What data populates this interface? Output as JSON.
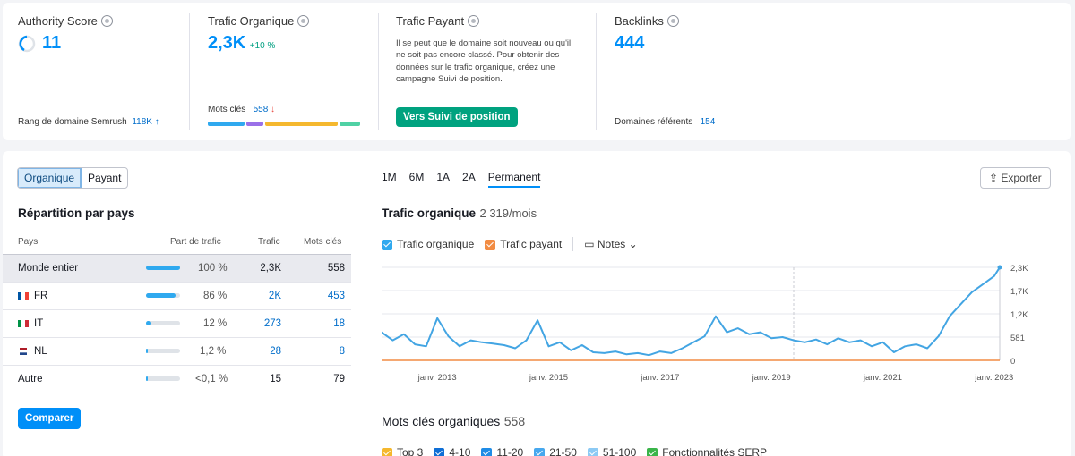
{
  "authority": {
    "title": "Authority Score",
    "value": "11",
    "footer_label": "Rang de domaine Semrush",
    "footer_value": "118K",
    "footer_arrow": "↑"
  },
  "organic": {
    "title": "Trafic Organique",
    "value": "2,3K",
    "delta": "+10 %",
    "kw_label": "Mots clés",
    "kw_value": "558",
    "kw_arrow": "↓"
  },
  "paid": {
    "title": "Trafic Payant",
    "message": "Il se peut que le domaine soit nouveau ou qu'il ne soit pas encore classé. Pour obtenir des données sur le trafic organique, créez une campagne Suivi de position.",
    "button": "Vers Suivi de position"
  },
  "backlinks": {
    "title": "Backlinks",
    "value": "444",
    "footer_label": "Domaines référents",
    "footer_value": "154"
  },
  "tabs": {
    "organic": "Organique",
    "paid": "Payant"
  },
  "country": {
    "title": "Répartition par pays",
    "headers": {
      "country": "Pays",
      "share": "Part de trafic",
      "traffic": "Trafic",
      "keywords": "Mots clés"
    },
    "rows": [
      {
        "name": "Monde entier",
        "share": "100 %",
        "share_frac": 1.0,
        "traffic": "2,3K",
        "keywords": "558"
      },
      {
        "name": "FR",
        "share": "86 %",
        "share_frac": 0.86,
        "traffic": "2K",
        "keywords": "453"
      },
      {
        "name": "IT",
        "share": "12 %",
        "share_frac": 0.12,
        "traffic": "273",
        "keywords": "18"
      },
      {
        "name": "NL",
        "share": "1,2 %",
        "share_frac": 0.012,
        "traffic": "28",
        "keywords": "8"
      },
      {
        "name": "Autre",
        "share": "<0,1 %",
        "share_frac": 0.001,
        "traffic": "15",
        "keywords": "79"
      }
    ],
    "compare_button": "Comparer"
  },
  "periods": [
    "1M",
    "6M",
    "1A",
    "2A",
    "Permanent"
  ],
  "export_label": "Exporter",
  "traffic_chart": {
    "title": "Trafic organique",
    "subtitle": "2 319/mois",
    "legend": {
      "organic": "Trafic organique",
      "paid": "Trafic payant",
      "notes": "Notes"
    }
  },
  "kw_section": {
    "title": "Mots clés organiques",
    "count": "558",
    "legend": [
      "Top 3",
      "4-10",
      "11-20",
      "21-50",
      "51-100",
      "Fonctionnalités SERP"
    ]
  },
  "colors": {
    "accent": "#008ff8",
    "green": "#00a27f",
    "organic": "#43a5e3",
    "paid": "#f28c43"
  },
  "chart_data": {
    "type": "line",
    "y_ticks": [
      "2,3K",
      "1,7K",
      "1,2K",
      "581",
      "0"
    ],
    "x_ticks": [
      "janv. 2013",
      "janv. 2015",
      "janv. 2017",
      "janv. 2019",
      "janv. 2021",
      "janv. 2023"
    ],
    "ylim": [
      0,
      2319
    ],
    "series": [
      {
        "name": "Trafic organique",
        "color": "#43a5e3",
        "x": [
          2012.0,
          2012.2,
          2012.4,
          2012.6,
          2012.8,
          2013.0,
          2013.2,
          2013.4,
          2013.6,
          2013.8,
          2014.0,
          2014.2,
          2014.4,
          2014.6,
          2014.8,
          2015.0,
          2015.2,
          2015.4,
          2015.6,
          2015.8,
          2016.0,
          2016.2,
          2016.4,
          2016.6,
          2016.8,
          2017.0,
          2017.2,
          2017.4,
          2017.6,
          2017.8,
          2018.0,
          2018.2,
          2018.4,
          2018.6,
          2018.8,
          2019.0,
          2019.2,
          2019.4,
          2019.6,
          2019.8,
          2020.0,
          2020.2,
          2020.4,
          2020.6,
          2020.8,
          2021.0,
          2021.2,
          2021.4,
          2021.6,
          2021.8,
          2022.0,
          2022.2,
          2022.4,
          2022.6,
          2022.8,
          2023.0,
          2023.1
        ],
        "y": [
          700,
          500,
          650,
          400,
          350,
          1050,
          600,
          350,
          500,
          450,
          420,
          380,
          300,
          500,
          1000,
          350,
          450,
          250,
          380,
          200,
          180,
          220,
          150,
          180,
          130,
          220,
          180,
          300,
          450,
          600,
          1100,
          700,
          800,
          650,
          700,
          550,
          580,
          500,
          450,
          520,
          400,
          550,
          450,
          500,
          350,
          450,
          200,
          350,
          400,
          300,
          600,
          1100,
          1400,
          1700,
          1900,
          2100,
          2319
        ]
      },
      {
        "name": "Trafic payant",
        "color": "#f28c43",
        "x": [
          2012.0,
          2023.1
        ],
        "y": [
          0,
          0
        ]
      }
    ]
  }
}
